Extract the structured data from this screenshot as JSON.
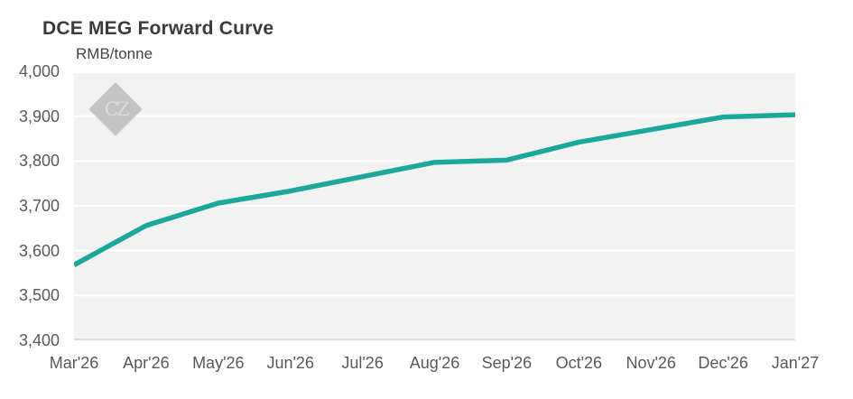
{
  "header": {
    "title": "DCE MEG Forward Curve",
    "subtitle": "RMB/tonne"
  },
  "watermark": {
    "text": "CZ"
  },
  "chart_data": {
    "type": "line",
    "title": "DCE MEG Forward Curve",
    "ylabel": "RMB/tonne",
    "categories": [
      "Mar'26",
      "Apr'26",
      "May'26",
      "Jun'26",
      "Jul'26",
      "Aug'26",
      "Sep'26",
      "Oct'26",
      "Nov'26",
      "Dec'26",
      "Jan'27"
    ],
    "values": [
      3568,
      3656,
      3706,
      3733,
      3765,
      3797,
      3802,
      3842,
      3870,
      3898,
      3903
    ],
    "ylim": [
      3400,
      4000
    ],
    "ytick_step": 100,
    "yticks": [
      "4,000",
      "3,900",
      "3,800",
      "3,700",
      "3,600",
      "3,500",
      "3,400"
    ],
    "grid": "horizontal",
    "legend": "none",
    "line_color": "#1aa89b",
    "plot_bg": "#f2f2f2",
    "grid_color": "#ffffff",
    "axis_line_color": "#d6d6d6"
  }
}
